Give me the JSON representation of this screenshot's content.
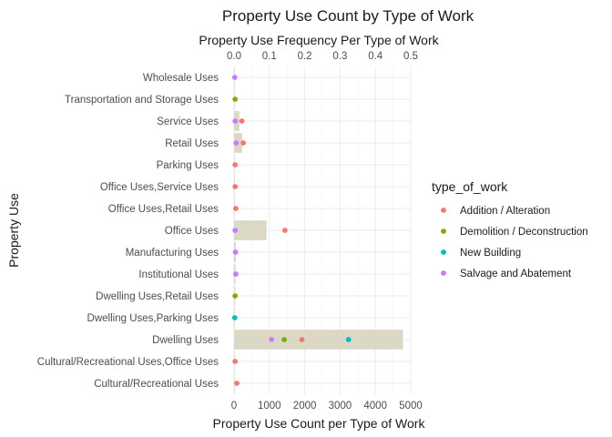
{
  "chart_data": {
    "type": "bar+scatter",
    "title": "Property Use Count by Type of Work",
    "subtitle": "Property Use Frequency Per Type of Work",
    "xlabel": "Property Use Count per Type of Work",
    "ylabel": "Property Use",
    "xlim_bottom": [
      0,
      5000
    ],
    "xticks_bottom": [
      0,
      1000,
      2000,
      3000,
      4000,
      5000
    ],
    "xlim_top": [
      0,
      0.5
    ],
    "xticks_top": [
      "0.0",
      "0.1",
      "0.2",
      "0.3",
      "0.4",
      "0.5"
    ],
    "grid": true,
    "legend": {
      "title": "type_of_work",
      "position": "right",
      "entries": [
        {
          "name": "Addition / Alteration",
          "color": "#F8766D"
        },
        {
          "name": "Demolition / Deconstruction",
          "color": "#7CAE00"
        },
        {
          "name": "New Building",
          "color": "#00BFC4"
        },
        {
          "name": "Salvage and Abatement",
          "color": "#C77CFF"
        }
      ]
    },
    "bar_color": "#DBD8C6",
    "categories": [
      "Cultural/Recreational Uses",
      "Cultural/Recreational Uses,Office Uses",
      "Dwelling Uses",
      "Dwelling Uses,Parking Uses",
      "Dwelling Uses,Retail Uses",
      "Institutional Uses",
      "Manufacturing Uses",
      "Office Uses",
      "Office Uses,Retail Uses",
      "Office Uses,Service Uses",
      "Parking Uses",
      "Retail Uses",
      "Service Uses",
      "Transportation and Storage Uses",
      "Wholesale Uses"
    ],
    "bar_frequency": [
      0.002,
      0.001,
      0.478,
      0.001,
      0.003,
      0.004,
      0.005,
      0.092,
      0.001,
      0.001,
      0.001,
      0.023,
      0.015,
      0.001,
      0.001
    ],
    "series": [
      {
        "name": "Addition / Alteration",
        "points": [
          [
            "Cultural/Recreational Uses",
            80
          ],
          [
            "Cultural/Recreational Uses,Office Uses",
            30
          ],
          [
            "Dwelling Uses",
            1920
          ],
          [
            "Office Uses",
            1440
          ],
          [
            "Office Uses,Retail Uses",
            50
          ],
          [
            "Office Uses,Service Uses",
            30
          ],
          [
            "Parking Uses",
            30
          ],
          [
            "Retail Uses",
            260
          ],
          [
            "Service Uses",
            220
          ]
        ]
      },
      {
        "name": "Demolition / Deconstruction",
        "points": [
          [
            "Dwelling Uses",
            1420
          ],
          [
            "Dwelling Uses,Retail Uses",
            30
          ],
          [
            "Transportation and Storage Uses",
            30
          ]
        ]
      },
      {
        "name": "New Building",
        "points": [
          [
            "Dwelling Uses",
            3240
          ],
          [
            "Dwelling Uses,Parking Uses",
            20
          ]
        ]
      },
      {
        "name": "Salvage and Abatement",
        "points": [
          [
            "Dwelling Uses",
            1060
          ],
          [
            "Institutional Uses",
            50
          ],
          [
            "Manufacturing Uses",
            40
          ],
          [
            "Office Uses",
            30
          ],
          [
            "Retail Uses",
            60
          ],
          [
            "Service Uses",
            30
          ],
          [
            "Wholesale Uses",
            20
          ]
        ]
      }
    ]
  }
}
